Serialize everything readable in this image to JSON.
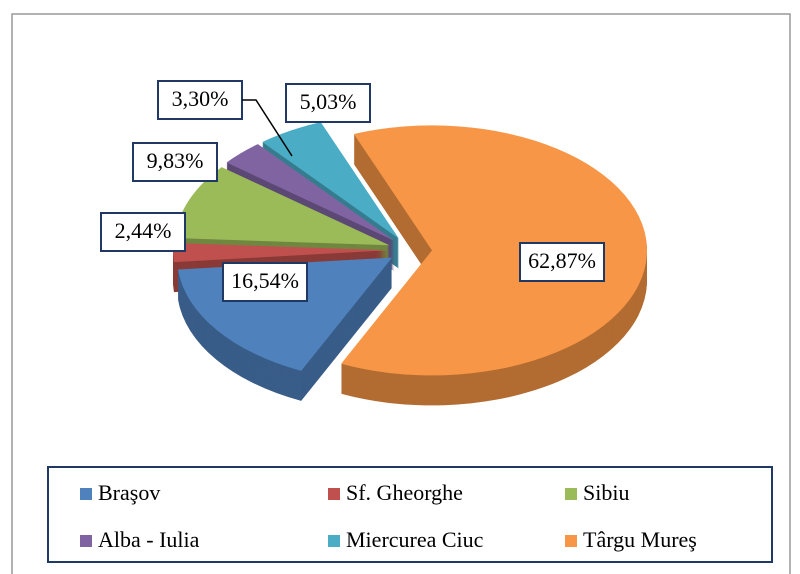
{
  "chart_data": {
    "type": "pie",
    "categories": [
      "Braşov",
      "Sf. Gheorghe",
      "Sibiu",
      "Alba - Iulia",
      "Miercurea Ciuc",
      "Târgu Mureş"
    ],
    "values": [
      16.54,
      2.44,
      9.83,
      3.3,
      5.03,
      62.87
    ],
    "value_labels": [
      "16,54%",
      "2,44%",
      "9,83%",
      "3,30%",
      "5,03%",
      "62,87%"
    ],
    "colors": [
      "#4F81BD",
      "#C0504D",
      "#9BBB59",
      "#8064A2",
      "#4BACC6",
      "#F79646"
    ],
    "legend": "bottom"
  }
}
